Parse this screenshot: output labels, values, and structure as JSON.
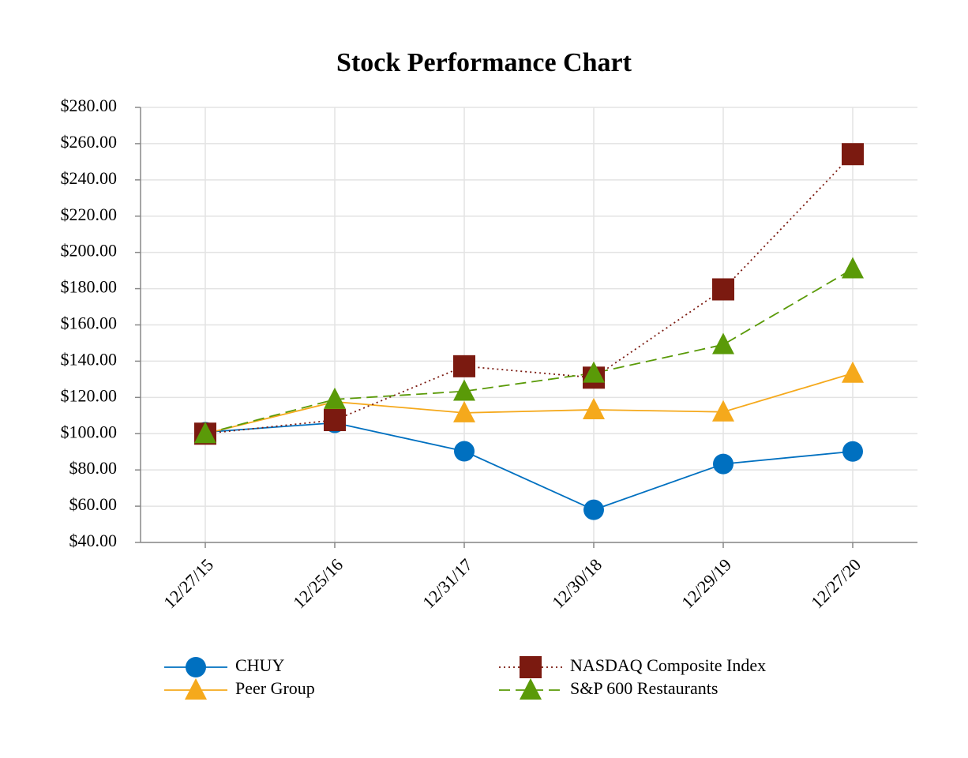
{
  "chart_data": {
    "type": "line",
    "title": "Stock Performance Chart",
    "categories": [
      "12/27/15",
      "12/25/16",
      "12/31/17",
      "12/30/18",
      "12/29/19",
      "12/27/20"
    ],
    "series": [
      {
        "name": "CHUY",
        "color": "#0070c0",
        "marker": "circle",
        "dash": "solid",
        "values": [
          100.8,
          106,
          90.3,
          58,
          83.3,
          90.2
        ]
      },
      {
        "name": "Peer Group",
        "color": "#f5a91c",
        "marker": "triangle",
        "dash": "solid",
        "values": [
          100,
          117.6,
          111.5,
          113.2,
          112,
          133.3
        ]
      },
      {
        "name": "NASDAQ Composite Index",
        "color": "#7b1a10",
        "marker": "square",
        "dash": "dotted",
        "values": [
          100,
          107.5,
          137.2,
          130.9,
          179.6,
          254.2
        ]
      },
      {
        "name": "S&P 600 Restaurants",
        "color": "#5a9a08",
        "marker": "triangle",
        "dash": "dashed",
        "values": [
          100,
          118.9,
          123.4,
          133.4,
          149.1,
          190.9
        ]
      }
    ],
    "ylim": [
      40,
      280
    ],
    "yticks": [
      {
        "value": 40,
        "label": "$40.00"
      },
      {
        "value": 60,
        "label": "$60.00"
      },
      {
        "value": 80,
        "label": "$80.00"
      },
      {
        "value": 100,
        "label": "$100.00"
      },
      {
        "value": 120,
        "label": "$120.00"
      },
      {
        "value": 140,
        "label": "$140.00"
      },
      {
        "value": 160,
        "label": "$160.00"
      },
      {
        "value": 180,
        "label": "$180.00"
      },
      {
        "value": 200,
        "label": "$200.00"
      },
      {
        "value": 220,
        "label": "$220.00"
      },
      {
        "value": 240,
        "label": "$240.00"
      },
      {
        "value": 260,
        "label": "$260.00"
      },
      {
        "value": 280,
        "label": "$280.00"
      }
    ],
    "grid": true,
    "legend": "bottom"
  }
}
